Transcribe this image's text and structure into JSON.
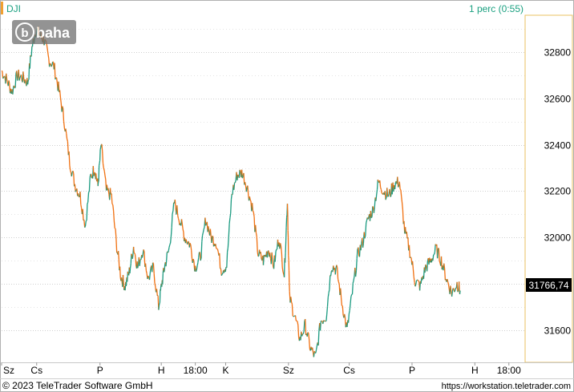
{
  "header": {
    "symbol": "DJI",
    "interval": "1 perc (0:55)"
  },
  "logo": {
    "text": "baha",
    "glyph": "b"
  },
  "price_badge": {
    "value": "31766,74"
  },
  "footer": {
    "copyright": "© 2023 TeleTrader Software GmbH",
    "url": "https://workstation.teletrader.com"
  },
  "colors": {
    "up": "#1a9a80",
    "down": "#f07010",
    "accent_orange": "#f0a030",
    "header_green": "#1aa080",
    "grid": "#cfcfcf",
    "badge_bg": "#000000",
    "badge_text": "#ffffff"
  },
  "chart_data": {
    "type": "line",
    "series_style": "candlestick-like colored line (up teal, down orange)",
    "title": "",
    "xlabel": "",
    "ylabel": "",
    "ylim": [
      31460,
      32960
    ],
    "y_ticks": [
      31600,
      31800,
      32000,
      32200,
      32400,
      32600,
      32800
    ],
    "y_tick_labels": [
      "31600",
      "31800",
      "32000",
      "32200",
      "32400",
      "32600",
      "32800"
    ],
    "x_ticks": [
      {
        "label": "Sz",
        "pos": 0.0
      },
      {
        "label": "Cs",
        "pos": 0.067
      },
      {
        "label": "P",
        "pos": 0.188
      },
      {
        "label": "H",
        "pos": 0.305
      },
      {
        "label": "18:00",
        "pos": 0.37
      },
      {
        "label": "K",
        "pos": 0.428
      },
      {
        "label": "Sz",
        "pos": 0.548
      },
      {
        "label": "Cs",
        "pos": 0.664
      },
      {
        "label": "P",
        "pos": 0.784
      },
      {
        "label": "H",
        "pos": 0.904
      },
      {
        "label": "18:00",
        "pos": 0.969
      }
    ],
    "grid": true,
    "last_value": 31766.74,
    "x": [
      0.0,
      0.01,
      0.02,
      0.03,
      0.04,
      0.05,
      0.058,
      0.066,
      0.074,
      0.082,
      0.09,
      0.1,
      0.11,
      0.12,
      0.13,
      0.14,
      0.15,
      0.16,
      0.17,
      0.178,
      0.184,
      0.19,
      0.2,
      0.21,
      0.22,
      0.228,
      0.236,
      0.244,
      0.252,
      0.26,
      0.27,
      0.28,
      0.29,
      0.3,
      0.306,
      0.312,
      0.32,
      0.33,
      0.34,
      0.35,
      0.36,
      0.37,
      0.38,
      0.39,
      0.4,
      0.41,
      0.42,
      0.43,
      0.44,
      0.45,
      0.46,
      0.47,
      0.48,
      0.49,
      0.5,
      0.51,
      0.52,
      0.53,
      0.54,
      0.546,
      0.55,
      0.56,
      0.57,
      0.58,
      0.59,
      0.6,
      0.61,
      0.62,
      0.63,
      0.64,
      0.65,
      0.66,
      0.67,
      0.68,
      0.69,
      0.7,
      0.71,
      0.72,
      0.73,
      0.74,
      0.75,
      0.76,
      0.77,
      0.78,
      0.79,
      0.8,
      0.81,
      0.82,
      0.83,
      0.84,
      0.85,
      0.86,
      0.87,
      0.876
    ],
    "y": [
      32720,
      32680,
      32630,
      32700,
      32690,
      32670,
      32820,
      32900,
      32870,
      32850,
      32770,
      32740,
      32630,
      32500,
      32330,
      32230,
      32180,
      32050,
      32260,
      32300,
      32220,
      32400,
      32200,
      32180,
      31960,
      31830,
      31790,
      31850,
      31960,
      31870,
      31950,
      31820,
      31870,
      31700,
      31800,
      31880,
      31950,
      32150,
      32080,
      32000,
      31970,
      31870,
      31920,
      32080,
      32000,
      31980,
      31860,
      31880,
      32190,
      32270,
      32280,
      32210,
      32120,
      31930,
      31900,
      31950,
      31880,
      32000,
      31840,
      32160,
      31740,
      31660,
      31560,
      31620,
      31520,
      31480,
      31640,
      31660,
      31880,
      31860,
      31720,
      31600,
      31760,
      31920,
      31980,
      32080,
      32120,
      32240,
      32200,
      32180,
      32230,
      32240,
      32030,
      31940,
      31810,
      31790,
      31870,
      31900,
      31950,
      31900,
      31820,
      31760,
      31800,
      31770
    ]
  }
}
